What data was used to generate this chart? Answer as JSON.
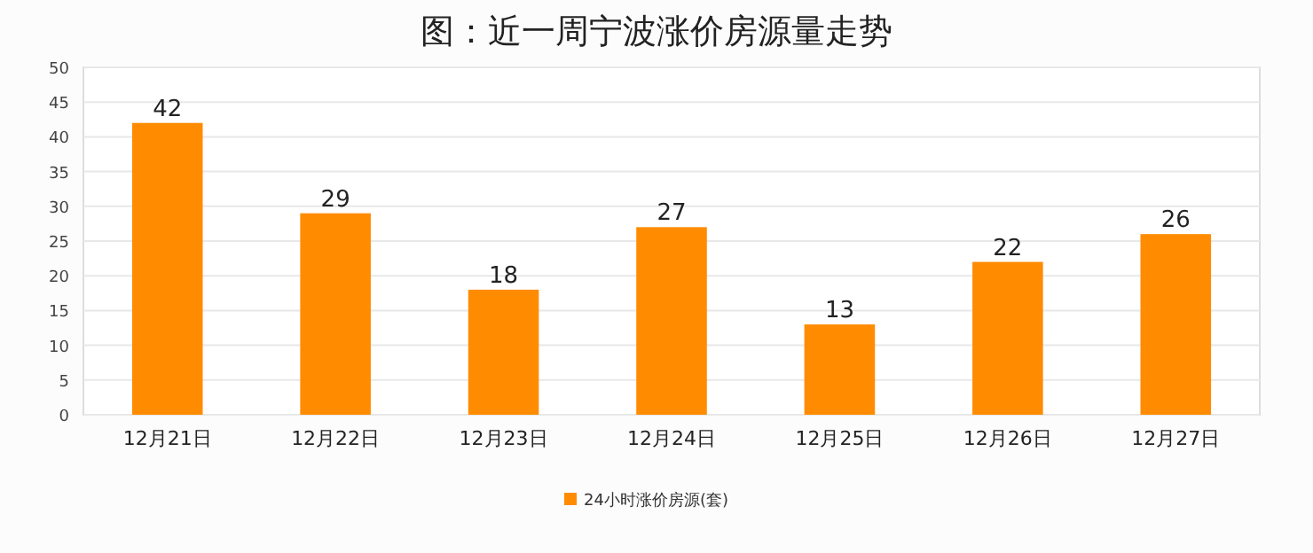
{
  "chart_data": {
    "type": "bar",
    "title": "图：近一周宁波涨价房源量走势",
    "categories": [
      "12月21日",
      "12月22日",
      "12月23日",
      "12月24日",
      "12月25日",
      "12月26日",
      "12月27日"
    ],
    "series": [
      {
        "name": "24小时涨价房源(套)",
        "color": "#ff8c00",
        "values": [
          42,
          29,
          18,
          27,
          13,
          22,
          26
        ]
      }
    ],
    "ylim": [
      0,
      50
    ],
    "yticks": [
      0,
      5,
      10,
      15,
      20,
      25,
      30,
      35,
      40,
      45,
      50
    ],
    "grid": "y",
    "legend": "bottom",
    "data_labels": true
  }
}
